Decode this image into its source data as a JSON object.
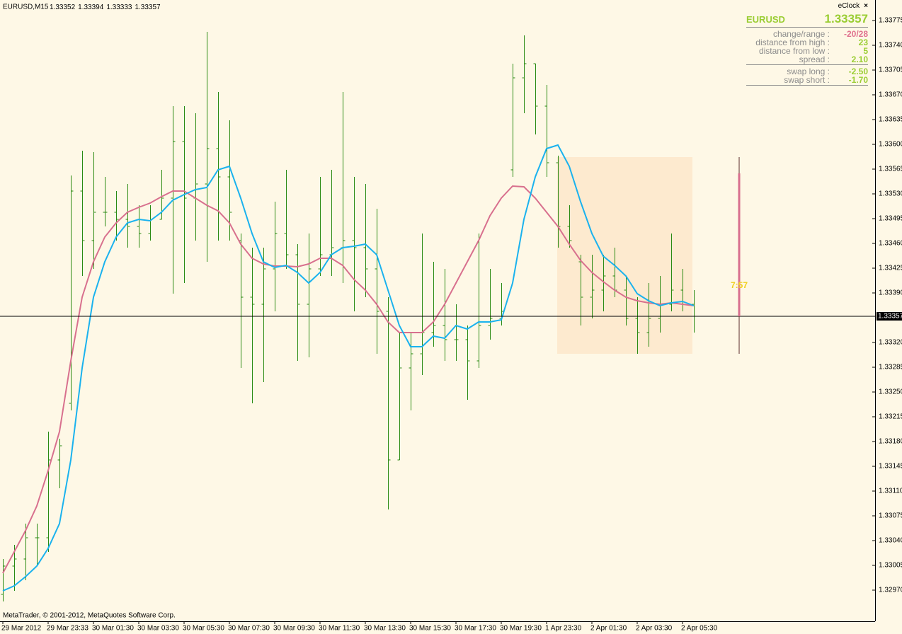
{
  "chart_data": {
    "type": "ohlc",
    "symbol": "EURUSD,M15",
    "quote": [
      1.33352,
      1.33394,
      1.33333,
      1.33357
    ],
    "x_labels": [
      "29 Mar 2012",
      "29 Mar 23:33",
      "30 Mar 01:30",
      "30 Mar 03:30",
      "30 Mar 05:30",
      "30 Mar 07:30",
      "30 Mar 09:30",
      "30 Mar 11:30",
      "30 Mar 13:30",
      "30 Mar 15:30",
      "30 Mar 17:30",
      "30 Mar 19:30",
      "1 Apr 23:30",
      "2 Apr 01:30",
      "2 Apr 03:30",
      "2 Apr 05:30"
    ],
    "open": [
      1.32964,
      1.33004,
      1.33014,
      1.33044,
      1.33044,
      1.33154,
      1.33234,
      1.33534,
      1.33464,
      1.33504,
      1.33504,
      1.33494,
      1.33484,
      1.33474,
      1.33494,
      1.33524,
      1.33604,
      1.33524,
      1.33544,
      1.33594,
      1.33554,
      1.33464,
      1.33384,
      1.33374,
      1.33424,
      1.33474,
      1.33444,
      1.33374,
      1.33424,
      1.33444,
      1.33454,
      1.33464,
      1.33454,
      1.33424,
      1.33364,
      1.33154,
      1.33284,
      1.33304,
      1.33334,
      1.33344,
      1.33324,
      1.33324,
      1.33294,
      1.33344,
      1.33354,
      1.33564,
      1.33694,
      1.33714,
      1.33654,
      1.33574,
      1.33484,
      1.33434,
      1.33384,
      1.33394,
      1.33414,
      1.33394,
      1.33354,
      1.33334,
      1.33354,
      1.33374,
      1.33394,
      1.33374
    ],
    "high": [
      1.33014,
      1.33034,
      1.33064,
      1.33064,
      1.33194,
      1.33184,
      1.33556,
      1.33591,
      1.33589,
      1.33554,
      1.33534,
      1.33544,
      1.33514,
      1.33514,
      1.33564,
      1.33654,
      1.33654,
      1.33644,
      1.33759,
      1.33674,
      1.33634,
      1.33474,
      1.33454,
      1.33454,
      1.33519,
      1.33564,
      1.33459,
      1.33474,
      1.33554,
      1.33564,
      1.33674,
      1.33554,
      1.33544,
      1.33509,
      1.33384,
      1.33334,
      1.33334,
      1.33474,
      1.33434,
      1.33424,
      1.33374,
      1.33344,
      1.33474,
      1.33424,
      1.33404,
      1.33714,
      1.33754,
      1.33714,
      1.33684,
      1.33584,
      1.33514,
      1.33444,
      1.33444,
      1.33444,
      1.33454,
      1.33414,
      1.33384,
      1.33404,
      1.33414,
      1.33474,
      1.33424,
      1.33394
    ],
    "low": [
      1.32954,
      1.32969,
      1.32984,
      1.33004,
      1.33024,
      1.33114,
      1.33224,
      1.33414,
      1.33424,
      1.33484,
      1.33464,
      1.33454,
      1.33454,
      1.33464,
      1.33494,
      1.33389,
      1.33404,
      1.33464,
      1.33434,
      1.33464,
      1.33464,
      1.33284,
      1.33234,
      1.33264,
      1.33364,
      1.33424,
      1.33294,
      1.33299,
      1.33414,
      1.33414,
      1.33404,
      1.33364,
      1.33384,
      1.33304,
      1.33084,
      1.33154,
      1.33224,
      1.33274,
      1.33314,
      1.33294,
      1.33294,
      1.33239,
      1.33284,
      1.33324,
      1.33344,
      1.33554,
      1.33644,
      1.33614,
      1.33554,
      1.33454,
      1.33454,
      1.33344,
      1.33354,
      1.33364,
      1.33384,
      1.33344,
      1.33304,
      1.33314,
      1.33334,
      1.33364,
      1.33364,
      1.33334
    ],
    "close": [
      1.33004,
      1.33014,
      1.33044,
      1.33044,
      1.33154,
      1.33174,
      1.33534,
      1.33464,
      1.33504,
      1.33504,
      1.33494,
      1.33484,
      1.33474,
      1.33494,
      1.33524,
      1.33604,
      1.33524,
      1.33544,
      1.33594,
      1.33554,
      1.33504,
      1.33384,
      1.33374,
      1.33424,
      1.33474,
      1.33444,
      1.33374,
      1.33424,
      1.33444,
      1.33454,
      1.33464,
      1.33454,
      1.33424,
      1.33364,
      1.33154,
      1.33284,
      1.33304,
      1.33334,
      1.33344,
      1.33324,
      1.33324,
      1.33294,
      1.33344,
      1.33354,
      1.33364,
      1.33694,
      1.33714,
      1.33654,
      1.33574,
      1.33484,
      1.33464,
      1.33384,
      1.33394,
      1.33414,
      1.33394,
      1.33354,
      1.33334,
      1.33354,
      1.33374,
      1.33394,
      1.33374,
      1.33357
    ],
    "bar_color": "#2b8a12",
    "moving_averages": [
      {
        "color": "#d8708e",
        "values": [
          1.32994,
          1.33024,
          1.33054,
          1.33089,
          1.33139,
          1.33194,
          1.33294,
          1.33384,
          1.33434,
          1.33469,
          1.33489,
          1.33504,
          1.33511,
          1.33517,
          1.33526,
          1.33534,
          1.33534,
          1.33524,
          1.33514,
          1.33506,
          1.33489,
          1.33459,
          1.33439,
          1.33431,
          1.33428,
          1.33428,
          1.33427,
          1.33431,
          1.33439,
          1.33439,
          1.33429,
          1.33409,
          1.33394,
          1.33374,
          1.33349,
          1.33334,
          1.33334,
          1.33334,
          1.33349,
          1.33374,
          1.33404,
          1.33434,
          1.33464,
          1.33499,
          1.33524,
          1.33541,
          1.3354,
          1.33524,
          1.33504,
          1.33484,
          1.33459,
          1.33436,
          1.33419,
          1.33406,
          1.33394,
          1.33384,
          1.33379,
          1.33376,
          1.33374,
          1.33376,
          1.33374,
          1.33372
        ]
      },
      {
        "color": "#1ab2ee",
        "values": [
          1.32969,
          1.32976,
          1.32989,
          1.33004,
          1.33029,
          1.33064,
          1.33154,
          1.33284,
          1.33384,
          1.33434,
          1.33469,
          1.33489,
          1.33494,
          1.33492,
          1.33504,
          1.33521,
          1.33529,
          1.33536,
          1.33539,
          1.33564,
          1.33569,
          1.33524,
          1.33474,
          1.33434,
          1.33426,
          1.33429,
          1.33419,
          1.33404,
          1.33419,
          1.33444,
          1.33454,
          1.33456,
          1.33459,
          1.33444,
          1.33394,
          1.33344,
          1.33314,
          1.33314,
          1.33329,
          1.33326,
          1.33344,
          1.33339,
          1.33349,
          1.33349,
          1.33352,
          1.33404,
          1.33494,
          1.33554,
          1.33594,
          1.33599,
          1.33569,
          1.33519,
          1.33474,
          1.33442,
          1.33429,
          1.33414,
          1.33389,
          1.33379,
          1.33372,
          1.33376,
          1.33378,
          1.33372
        ]
      }
    ],
    "current_price": 1.33357,
    "day_bar": {
      "open": 1.33559,
      "high": 1.33582,
      "low": 1.33304,
      "close": 1.33357
    },
    "timer": "7:57",
    "ylim": [
      1.32926,
      1.33804
    ],
    "yticks": [
      {
        "value": 1.3297,
        "label": "1.32970"
      },
      1.33005,
      {
        "value": 1.3304,
        "label": "1.33040"
      },
      1.33075,
      {
        "value": 1.3311,
        "label": "1.33110"
      },
      1.33145,
      {
        "value": 1.3318,
        "label": "1.33180"
      },
      1.33215,
      {
        "value": 1.3325,
        "label": "1.33250"
      },
      1.33285,
      {
        "value": 1.3332,
        "label": "1.33320"
      },
      {
        "value": 1.3339,
        "label": "1.33390"
      },
      1.33425,
      {
        "value": 1.3346,
        "label": "1.33460"
      },
      1.33495,
      {
        "value": 1.3353,
        "label": "1.33530"
      },
      1.33565,
      {
        "value": 1.336,
        "label": "1.33600"
      },
      1.33635,
      {
        "value": 1.3367,
        "label": "1.33670"
      },
      1.33705,
      {
        "value": 1.3374,
        "label": "1.33740"
      },
      1.33775
    ],
    "footer": "MetaTrader, © 2001-2012, MetaQuotes Software Corp."
  },
  "eclock": {
    "title": "eClock",
    "close": "×",
    "symbol": "EURUSD",
    "rows": [
      {
        "label": "change/range :",
        "value": "-20/28"
      },
      {
        "label": "distance from high :",
        "value": "23"
      },
      {
        "label": "distance from low :",
        "value": "5"
      },
      {
        "label": "spread :",
        "value": "2.10"
      }
    ],
    "swap_rows": [
      {
        "label": "swap long :",
        "value": "-2.50"
      },
      {
        "label": "swap short :",
        "value": "-1.70"
      }
    ]
  }
}
